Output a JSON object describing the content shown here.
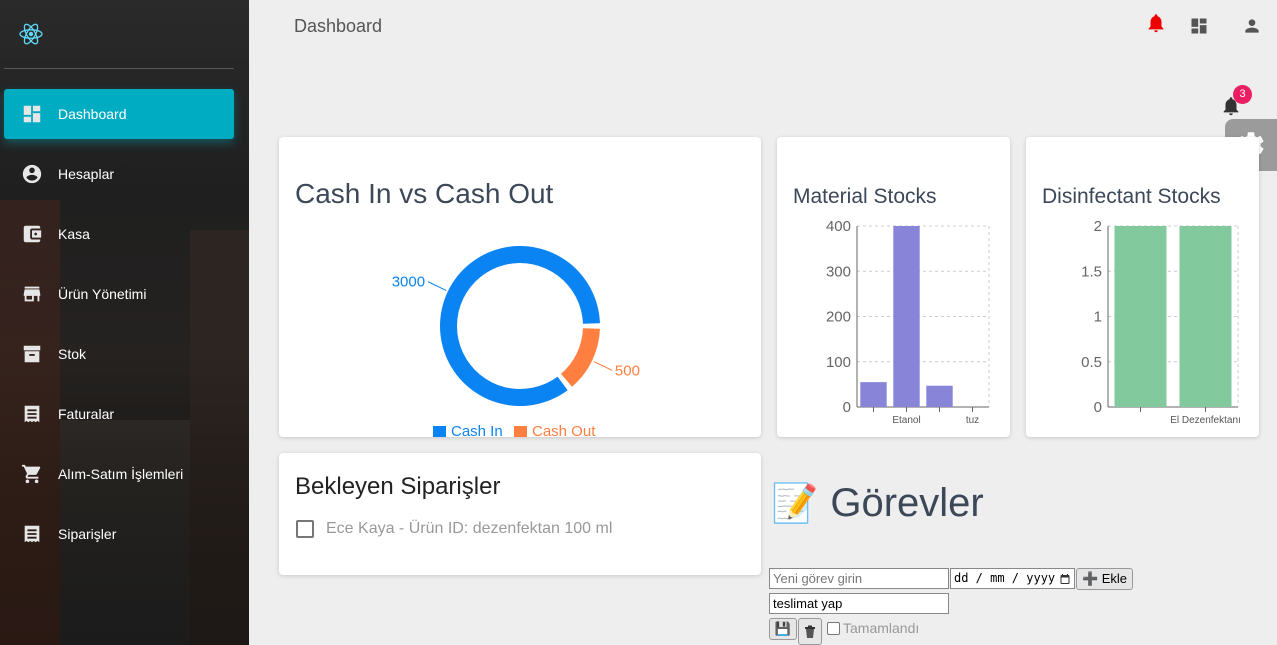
{
  "page": {
    "title": "Dashboard"
  },
  "colors": {
    "accent": "#00acc1",
    "cashIn": "#0b84f3",
    "cashOut": "#ff7f40",
    "material": "#8884d8",
    "disinfectant": "#82ca9d",
    "badge": "#e91e63",
    "alert": "#ee0000"
  },
  "sidebar": {
    "items": [
      {
        "label": "Dashboard",
        "icon": "dashboard-icon",
        "active": true
      },
      {
        "label": "Hesaplar",
        "icon": "account-circle-icon"
      },
      {
        "label": "Kasa",
        "icon": "wallet-icon"
      },
      {
        "label": "Ürün Yönetimi",
        "icon": "store-icon"
      },
      {
        "label": "Stok",
        "icon": "archive-icon"
      },
      {
        "label": "Faturalar",
        "icon": "receipt-icon"
      },
      {
        "label": "Alım-Satım İşlemleri",
        "icon": "shopping-cart-icon"
      },
      {
        "label": "Siparişler",
        "icon": "receipt-icon"
      }
    ]
  },
  "notifications": {
    "count": "3"
  },
  "chart_data": [
    {
      "type": "pie",
      "title": "Cash In vs Cash Out",
      "categories": [
        "Cash In",
        "Cash Out"
      ],
      "values": [
        3000,
        500
      ],
      "labels": [
        "3000",
        "500"
      ],
      "legend": "bottom"
    },
    {
      "type": "bar",
      "title": "Material Stocks",
      "categories": [
        "",
        "Etanol",
        "",
        "tuz"
      ],
      "values": [
        55,
        400,
        47,
        0
      ],
      "ylim": [
        0,
        400
      ],
      "yticks": [
        "0",
        "100",
        "200",
        "300",
        "400"
      ]
    },
    {
      "type": "bar",
      "title": "Disinfectant Stocks",
      "categories": [
        "",
        "El Dezenfektanı"
      ],
      "values": [
        2,
        2
      ],
      "ylim": [
        0,
        2
      ],
      "yticks": [
        "0",
        "0.5",
        "1",
        "1.5",
        "2"
      ]
    }
  ],
  "orders": {
    "title": "Bekleyen Siparişler",
    "items": [
      {
        "text": "Ece Kaya - Ürün ID: dezenfektan 100 ml"
      }
    ]
  },
  "tasks": {
    "title": "Görevler",
    "emoji": "📝",
    "input_placeholder": "Yeni görev girin",
    "date_placeholder": "dd / mm / yyyy",
    "add_label": "➕ Ekle",
    "items": [
      {
        "text": "teslimat yap",
        "done_label": "Tamamlandı"
      }
    ]
  }
}
